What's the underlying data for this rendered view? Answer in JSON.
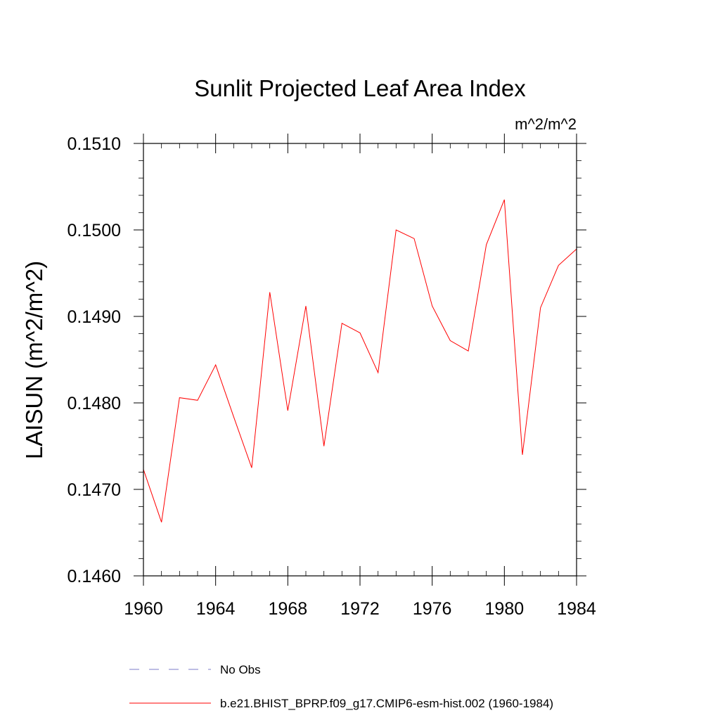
{
  "chart_data": {
    "type": "line",
    "title": "Sunlit Projected Leaf Area Index",
    "units": "m^2/m^2",
    "ylabel": "LAISUN  (m^2/m^2)",
    "xlabel": "",
    "xlim": [
      1960,
      1984
    ],
    "ylim": [
      0.146,
      0.151
    ],
    "xticks": [
      "1960",
      "1964",
      "1968",
      "1972",
      "1976",
      "1980",
      "1984"
    ],
    "yticks": [
      "0.1460",
      "0.1470",
      "0.1480",
      "0.1490",
      "0.1500",
      "0.1510"
    ],
    "grid": false,
    "legend_position": "bottom",
    "series": [
      {
        "name": "b.e21.BHIST_BPRP.f09_g17.CMIP6-esm-hist.002 (1960-1984)",
        "color": "#ff0000",
        "style": "solid",
        "x": [
          1960,
          1961,
          1962,
          1963,
          1964,
          1965,
          1966,
          1967,
          1968,
          1969,
          1970,
          1971,
          1972,
          1973,
          1974,
          1975,
          1976,
          1977,
          1978,
          1979,
          1980,
          1981,
          1982,
          1983,
          1984
        ],
        "y": [
          0.14723,
          0.14662,
          0.14806,
          0.14803,
          0.14844,
          0.14784,
          0.14725,
          0.14928,
          0.14791,
          0.14912,
          0.1475,
          0.14892,
          0.14881,
          0.14835,
          0.15,
          0.1499,
          0.14912,
          0.14872,
          0.1486,
          0.14983,
          0.15035,
          0.1474,
          0.1491,
          0.14959,
          0.14978
        ]
      }
    ],
    "legend": [
      {
        "label": "No Obs",
        "color": "#7b7bc8",
        "style": "dashed"
      },
      {
        "label": "b.e21.BHIST_BPRP.f09_g17.CMIP6-esm-hist.002 (1960-1984)",
        "color": "#ff0000",
        "style": "solid"
      }
    ]
  }
}
